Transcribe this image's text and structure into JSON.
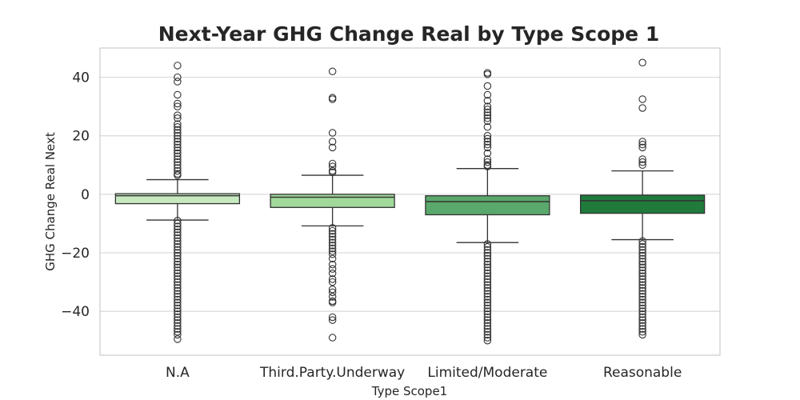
{
  "chart_data": {
    "type": "boxplot",
    "title": "Next-Year GHG Change Real by Type Scope 1",
    "xlabel": "Type Scope1",
    "ylabel": "GHG Change Real Next",
    "ylim": [
      -55,
      50
    ],
    "yticks": [
      40,
      20,
      0,
      -20,
      -40
    ],
    "grid": true,
    "categories": [
      "N.A",
      "Third.Party.Underway",
      "Limited/Moderate",
      "Reasonable"
    ],
    "colors": [
      "#c7e9c0",
      "#a1d99b",
      "#5aa86b",
      "#1f7a3c"
    ],
    "boxes": [
      {
        "q1": -3.2,
        "median": -0.5,
        "q3": 0.2,
        "whisker_low": -8.8,
        "whisker_high": 5.0,
        "outliers": [
          44,
          40,
          38.5,
          34,
          31,
          30,
          27,
          26,
          24,
          23,
          22,
          21,
          20,
          19,
          18,
          17,
          16,
          15,
          14,
          13,
          12,
          11,
          10,
          9,
          8,
          7,
          6.5,
          -9,
          -10,
          -11,
          -12,
          -13,
          -14,
          -15,
          -16,
          -17,
          -18,
          -19,
          -20,
          -21,
          -22,
          -23,
          -24,
          -25,
          -26,
          -27,
          -28,
          -29,
          -30,
          -31,
          -32,
          -33,
          -34,
          -35,
          -36,
          -37,
          -38,
          -39,
          -40,
          -41,
          -42,
          -43,
          -44,
          -45,
          -46,
          -47,
          -48,
          -49.5
        ]
      },
      {
        "q1": -4.5,
        "median": -1.0,
        "q3": 0.0,
        "whisker_low": -10.8,
        "whisker_high": 6.5,
        "outliers": [
          42,
          33,
          32.5,
          21,
          18,
          16,
          10.5,
          9.5,
          8,
          7.5,
          -11.5,
          -12.5,
          -13.5,
          -14.5,
          -15.5,
          -16.5,
          -17.5,
          -18.5,
          -19.5,
          -20.5,
          -22,
          -24,
          -25.5,
          -27,
          -29,
          -30,
          -32.5,
          -33.5,
          -35,
          -36.5,
          -37,
          -42,
          -43,
          -49
        ]
      },
      {
        "q1": -7.0,
        "median": -2.5,
        "q3": -0.5,
        "whisker_low": -16.5,
        "whisker_high": 8.8,
        "outliers": [
          41.5,
          41,
          37,
          34,
          32,
          30,
          29,
          28,
          27,
          26,
          25,
          23,
          20,
          19,
          18,
          17,
          16,
          14,
          12,
          11,
          10,
          9.5,
          -17,
          -18,
          -19,
          -20,
          -21,
          -22,
          -23,
          -24,
          -25,
          -26,
          -27,
          -28,
          -29,
          -30,
          -31,
          -32,
          -33,
          -34,
          -35,
          -36,
          -37,
          -38,
          -39,
          -40,
          -41,
          -42,
          -43,
          -44,
          -45,
          -46,
          -47,
          -48,
          -49,
          -50
        ]
      },
      {
        "q1": -6.5,
        "median": -2.2,
        "q3": -0.3,
        "whisker_low": -15.5,
        "whisker_high": 8.0,
        "outliers": [
          45,
          32.5,
          29.5,
          18,
          17,
          16,
          12,
          11,
          10,
          -16,
          -17,
          -18,
          -19,
          -20,
          -21,
          -22,
          -23,
          -24,
          -25,
          -26,
          -27,
          -28,
          -29,
          -30,
          -31,
          -32,
          -33,
          -34,
          -35,
          -36,
          -37,
          -38,
          -39,
          -40,
          -41,
          -42,
          -43,
          -44,
          -45,
          -46,
          -47,
          -48
        ]
      }
    ]
  }
}
